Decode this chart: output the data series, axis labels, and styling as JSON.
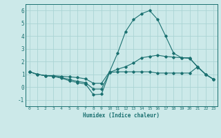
{
  "title": "",
  "xlabel": "Humidex (Indice chaleur)",
  "ylabel": "",
  "xlim": [
    -0.5,
    23.5
  ],
  "ylim": [
    -1.5,
    6.5
  ],
  "xticks": [
    0,
    1,
    2,
    3,
    4,
    5,
    6,
    7,
    8,
    9,
    10,
    11,
    12,
    13,
    14,
    15,
    16,
    17,
    18,
    19,
    20,
    21,
    22,
    23
  ],
  "yticks": [
    -1,
    0,
    1,
    2,
    3,
    4,
    5,
    6
  ],
  "bg_color": "#cce9e9",
  "line_color": "#1a7070",
  "grid_color": "#aad4d4",
  "lines": [
    {
      "x": [
        0,
        1,
        2,
        3,
        4,
        5,
        6,
        7,
        8,
        9,
        10,
        11,
        12,
        13,
        14,
        15,
        16,
        17,
        18,
        19,
        20,
        21,
        22,
        23
      ],
      "y": [
        1.2,
        1.0,
        0.9,
        0.85,
        0.7,
        0.5,
        0.35,
        0.25,
        -0.6,
        -0.55,
        1.15,
        1.2,
        1.2,
        1.2,
        1.2,
        1.2,
        1.1,
        1.1,
        1.1,
        1.1,
        1.1,
        1.6,
        1.0,
        0.6
      ]
    },
    {
      "x": [
        0,
        1,
        2,
        3,
        4,
        5,
        6,
        7,
        8,
        9,
        10,
        11,
        12,
        13,
        14,
        15,
        16,
        17,
        18,
        19,
        20,
        21,
        22,
        23
      ],
      "y": [
        1.2,
        1.0,
        0.9,
        0.85,
        0.75,
        0.6,
        0.45,
        0.35,
        -0.15,
        -0.15,
        1.15,
        1.4,
        1.6,
        1.9,
        2.3,
        2.4,
        2.5,
        2.4,
        2.35,
        2.3,
        2.3,
        1.55,
        1.0,
        0.6
      ]
    },
    {
      "x": [
        0,
        1,
        2,
        3,
        4,
        5,
        6,
        7,
        8,
        9,
        10,
        11,
        12,
        13,
        14,
        15,
        16,
        17,
        18,
        19,
        20,
        21,
        22,
        23
      ],
      "y": [
        1.2,
        1.0,
        0.9,
        0.9,
        0.85,
        0.8,
        0.75,
        0.65,
        0.3,
        0.3,
        1.2,
        2.65,
        4.35,
        5.3,
        5.75,
        6.0,
        5.3,
        4.0,
        2.65,
        2.3,
        2.25,
        1.6,
        1.0,
        0.6
      ]
    }
  ]
}
